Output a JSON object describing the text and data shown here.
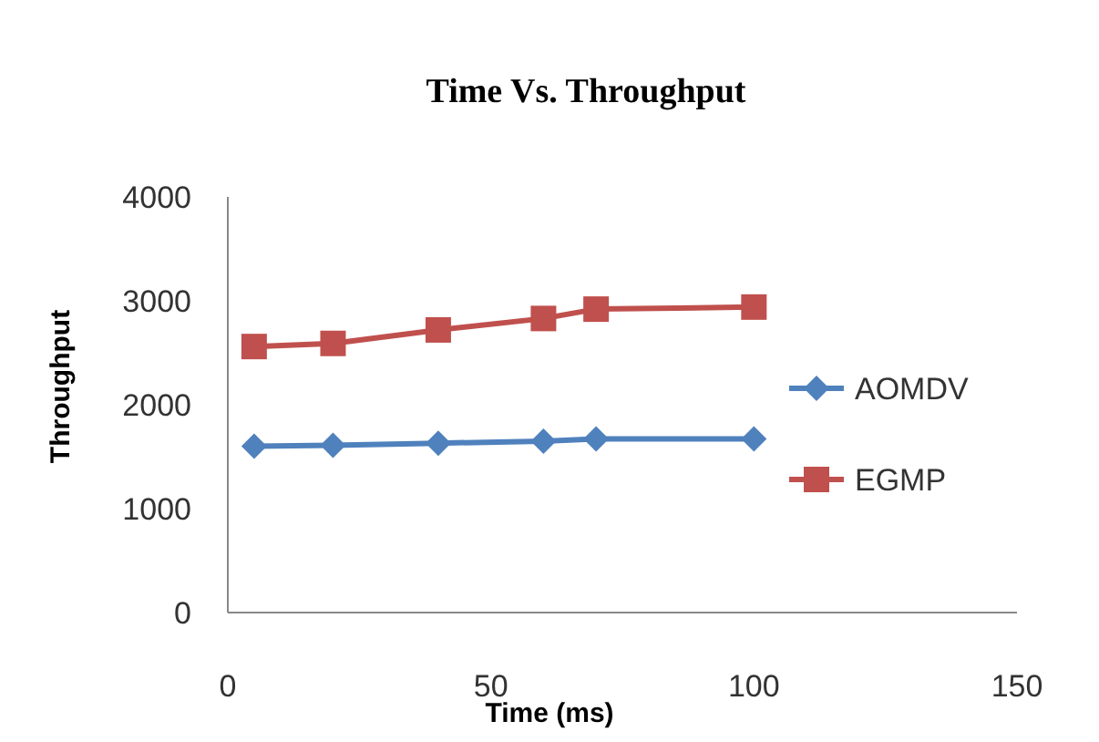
{
  "chart_data": {
    "type": "line",
    "title": "Time Vs. Throughput",
    "xlabel": "Time (ms)",
    "ylabel": "Throughput",
    "x": [
      5,
      20,
      40,
      60,
      70,
      100
    ],
    "xlim": [
      0,
      150
    ],
    "xticks": [
      0,
      50,
      100,
      150
    ],
    "ylim": [
      0,
      4000
    ],
    "yticks": [
      0,
      1000,
      2000,
      3000,
      4000
    ],
    "grid": false,
    "legend": "right",
    "series": [
      {
        "name": "AOMDV",
        "color": "#4f81bd",
        "marker": "diamond",
        "values": [
          1600,
          1610,
          1630,
          1650,
          1670,
          1670
        ]
      },
      {
        "name": "EGMP",
        "color": "#c0504d",
        "marker": "square",
        "values": [
          2560,
          2590,
          2720,
          2830,
          2920,
          2940
        ]
      }
    ]
  }
}
